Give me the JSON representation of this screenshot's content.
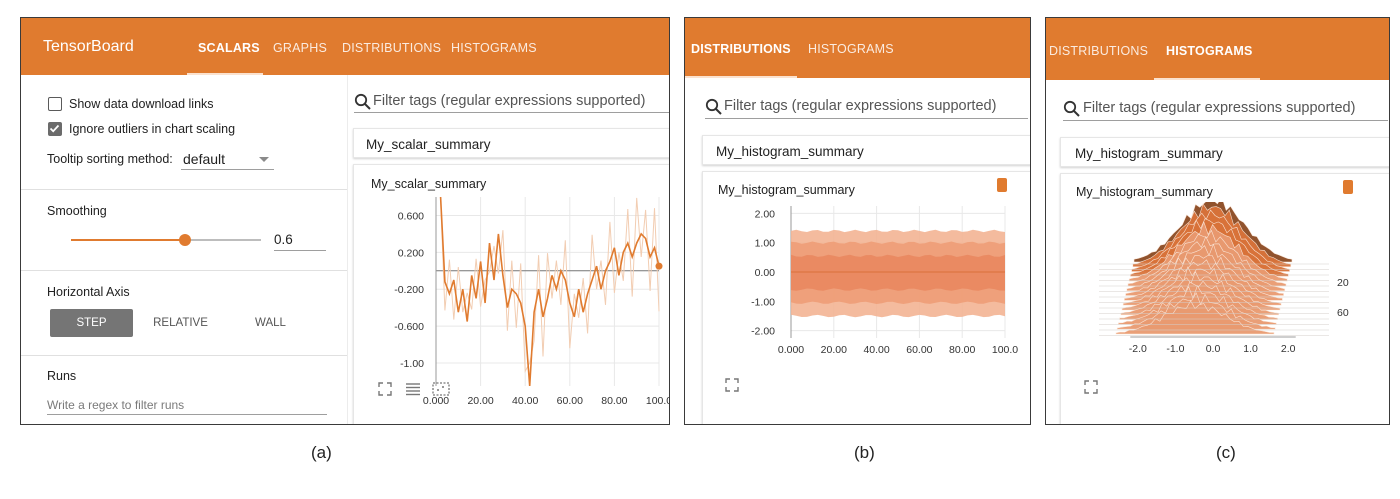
{
  "panel_a": {
    "app_title": "TensorBoard",
    "tabs": [
      "SCALARS",
      "GRAPHS",
      "DISTRIBUTIONS",
      "HISTOGRAMS"
    ],
    "active_tab": "SCALARS",
    "show_download_links": {
      "label": "Show data download links",
      "checked": false
    },
    "ignore_outliers": {
      "label": "Ignore outliers in chart scaling",
      "checked": true
    },
    "tooltip_sort": {
      "label": "Tooltip sorting method:",
      "value": "default"
    },
    "smoothing": {
      "label": "Smoothing",
      "value": "0.6",
      "fraction": 0.6
    },
    "horizontal_axis": {
      "label": "Horizontal Axis",
      "options": [
        "STEP",
        "RELATIVE",
        "WALL"
      ],
      "selected": "STEP"
    },
    "runs": {
      "label": "Runs",
      "placeholder": "Write a regex to filter runs"
    },
    "filter_placeholder": "Filter tags (regular expressions supported)",
    "card_title": "My_scalar_summary",
    "chart_title": "My_scalar_summary",
    "accent_color": "#e07b2f"
  },
  "panel_b": {
    "tabs": [
      "DISTRIBUTIONS",
      "HISTOGRAMS"
    ],
    "active_tab": "DISTRIBUTIONS",
    "filter_placeholder": "Filter tags (regular expressions supported)",
    "card_title": "My_histogram_summary",
    "chart_title": "My_histogram_summary"
  },
  "panel_c": {
    "tabs": [
      "DISTRIBUTIONS",
      "HISTOGRAMS"
    ],
    "active_tab": "HISTOGRAMS",
    "filter_placeholder": "Filter tags (regular expressions supported)",
    "card_title": "My_histogram_summary",
    "chart_title": "My_histogram_summary"
  },
  "captions": [
    "(a)",
    "(b)",
    "(c)"
  ],
  "chart_data": [
    {
      "type": "line",
      "x_ticks": [
        "0.000",
        "20.00",
        "40.00",
        "60.00",
        "80.00",
        "100.0"
      ],
      "y_ticks": [
        "0.600",
        "0.200",
        "-0.200",
        "-0.600",
        "-1.00"
      ],
      "xlim": [
        0,
        100
      ],
      "ylim": [
        -1.25,
        0.8
      ],
      "grid": true,
      "series": [
        {
          "smoothed": true,
          "x": [
            2,
            4,
            6,
            8,
            10,
            12,
            14,
            16,
            18,
            20,
            22,
            24,
            26,
            28,
            30,
            32,
            34,
            36,
            38,
            40,
            42,
            44,
            46,
            48,
            50,
            52,
            54,
            56,
            58,
            60,
            62,
            64,
            66,
            68,
            70,
            72,
            74,
            76,
            78,
            80,
            82,
            84,
            86,
            88,
            90,
            92,
            94,
            96,
            98,
            100
          ],
          "y": [
            0.82,
            -0.12,
            -0.25,
            -0.1,
            -0.45,
            -0.2,
            -0.55,
            -0.05,
            -0.3,
            0.1,
            -0.35,
            0.3,
            -0.1,
            0.4,
            -0.05,
            -0.4,
            -0.2,
            -0.25,
            -0.35,
            -0.6,
            -1.25,
            -0.45,
            -0.2,
            -0.5,
            -0.3,
            -0.05,
            -0.2,
            0.0,
            -0.1,
            -0.35,
            -0.5,
            -0.2,
            -0.45,
            -0.25,
            -0.1,
            0.05,
            -0.2,
            0.0,
            0.1,
            0.25,
            -0.05,
            0.2,
            0.3,
            0.15,
            0.3,
            0.4,
            0.35,
            0.15,
            0.25,
            0.05
          ]
        }
      ]
    },
    {
      "type": "area",
      "x_ticks": [
        "0.000",
        "20.00",
        "40.00",
        "60.00",
        "80.00",
        "100.0"
      ],
      "y_ticks": [
        "2.00",
        "1.00",
        "0.00",
        "-1.00",
        "-2.00"
      ],
      "xlim": [
        0,
        100
      ],
      "ylim": [
        -2.25,
        2.25
      ],
      "grid": true,
      "bands": [
        {
          "low": -1.5,
          "high": 1.4
        },
        {
          "low": -1.05,
          "high": 1.0
        },
        {
          "low": -0.6,
          "high": 0.55
        }
      ]
    },
    {
      "type": "area",
      "x_ticks": [
        "-2.0",
        "-1.0",
        "0.0",
        "1.0",
        "2.0"
      ],
      "y_ticks": [
        "20",
        "60"
      ],
      "xlim": [
        -2.5,
        2.5
      ]
    }
  ]
}
